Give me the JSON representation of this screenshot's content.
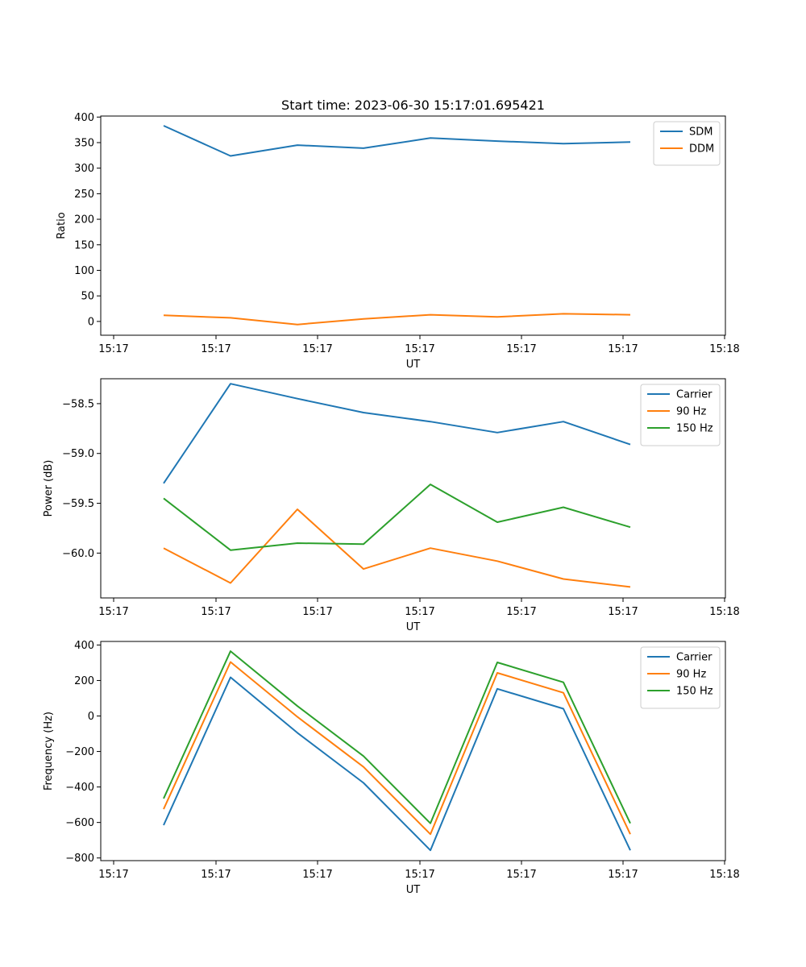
{
  "figure_title": "Start time: 2023-06-30 15:17:01.695421",
  "chart_data": [
    {
      "type": "line",
      "xlabel": "UT",
      "ylabel": "Ratio",
      "x_ticks": [
        "15:17",
        "15:17",
        "15:17",
        "15:17",
        "15:17",
        "15:17",
        "15:18"
      ],
      "y_ticks": [
        400,
        350,
        300,
        250,
        200,
        150,
        100,
        50,
        0
      ],
      "ylim": [
        -27,
        402
      ],
      "legend_position": "top-right",
      "series": [
        {
          "name": "SDM",
          "color": "#1f77b4",
          "values": [
            383,
            324,
            345,
            339,
            359,
            353,
            348,
            351
          ]
        },
        {
          "name": "DDM",
          "color": "#ff7f0e",
          "values": [
            12,
            7,
            -6,
            5,
            13,
            9,
            15,
            13
          ]
        }
      ]
    },
    {
      "type": "line",
      "xlabel": "UT",
      "ylabel": "Power (dB)",
      "x_ticks": [
        "15:17",
        "15:17",
        "15:17",
        "15:17",
        "15:17",
        "15:17",
        "15:18"
      ],
      "y_ticks": [
        "−58.5",
        "−59.0",
        "−59.5",
        "−60.0"
      ],
      "y_tick_values": [
        -58.5,
        -59.0,
        -59.5,
        -60.0
      ],
      "ylim": [
        -60.45,
        -58.25
      ],
      "legend_position": "top-right",
      "series": [
        {
          "name": "Carrier",
          "color": "#1f77b4",
          "values": [
            -59.3,
            -58.3,
            -58.45,
            -58.59,
            -58.68,
            -58.79,
            -58.68,
            -58.91
          ]
        },
        {
          "name": "90 Hz",
          "color": "#ff7f0e",
          "values": [
            -59.95,
            -60.3,
            -59.56,
            -60.16,
            -59.95,
            -60.08,
            -60.26,
            -60.34
          ]
        },
        {
          "name": "150 Hz",
          "color": "#2ca02c",
          "values": [
            -59.45,
            -59.97,
            -59.9,
            -59.91,
            -59.31,
            -59.69,
            -59.54,
            -59.74
          ]
        }
      ]
    },
    {
      "type": "line",
      "xlabel": "UT",
      "ylabel": "Frequency (Hz)",
      "x_ticks": [
        "15:17",
        "15:17",
        "15:17",
        "15:17",
        "15:17",
        "15:17",
        "15:18"
      ],
      "y_ticks": [
        "400",
        "200",
        "0",
        "−200",
        "−400",
        "−600",
        "−800"
      ],
      "y_tick_values": [
        400,
        200,
        0,
        -200,
        -400,
        -600,
        -800
      ],
      "ylim": [
        -815,
        420
      ],
      "legend_position": "top-right",
      "series": [
        {
          "name": "Carrier",
          "color": "#1f77b4",
          "values": [
            -615,
            218,
            -95,
            -377,
            -757,
            153,
            41,
            -757
          ]
        },
        {
          "name": "90 Hz",
          "color": "#ff7f0e",
          "values": [
            -525,
            304,
            -5,
            -287,
            -666,
            243,
            131,
            -666
          ]
        },
        {
          "name": "150 Hz",
          "color": "#2ca02c",
          "values": [
            -465,
            365,
            56,
            -226,
            -605,
            302,
            190,
            -605
          ]
        }
      ]
    }
  ]
}
